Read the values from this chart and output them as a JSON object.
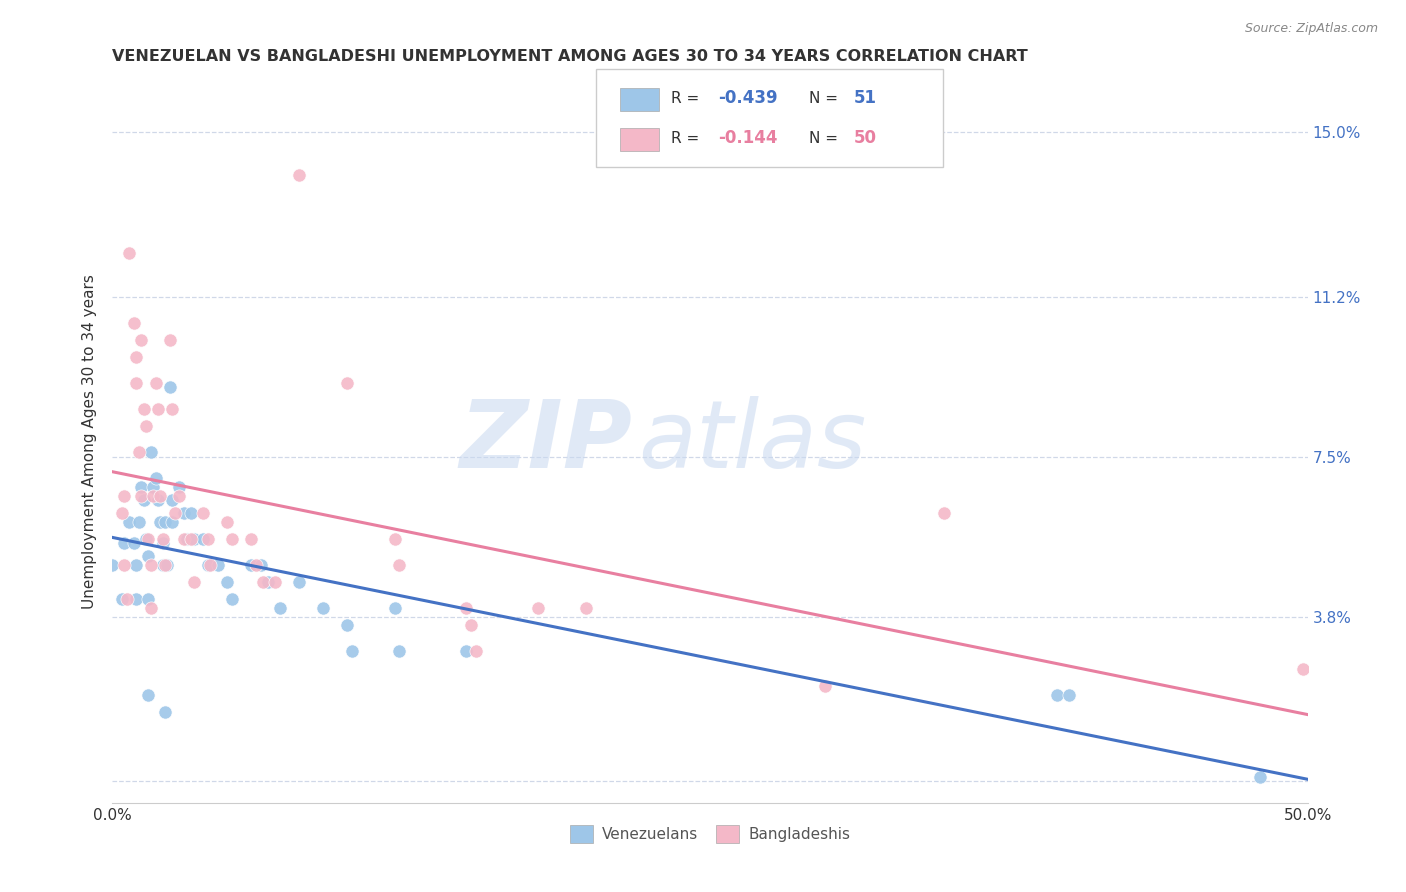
{
  "title": "VENEZUELAN VS BANGLADESHI UNEMPLOYMENT AMONG AGES 30 TO 34 YEARS CORRELATION CHART",
  "source": "Source: ZipAtlas.com",
  "ylabel": "Unemployment Among Ages 30 to 34 years",
  "xlim": [
    0.0,
    0.5
  ],
  "ylim": [
    -0.005,
    0.162
  ],
  "xticks": [
    0.0,
    0.1,
    0.2,
    0.3,
    0.4,
    0.5
  ],
  "xticklabels": [
    "0.0%",
    "",
    "",
    "",
    "",
    "50.0%"
  ],
  "ytick_positions": [
    0.0,
    0.038,
    0.075,
    0.112,
    0.15
  ],
  "yticklabels": [
    "",
    "3.8%",
    "7.5%",
    "11.2%",
    "15.0%"
  ],
  "legend_R1_val": "-0.439",
  "legend_N1_val": "51",
  "legend_R2_val": "-0.144",
  "legend_N2_val": "50",
  "venezuelan_color": "#9ec6e8",
  "bangladeshi_color": "#f4b8c8",
  "venezuelan_line_color": "#4472c4",
  "bangladeshi_line_color": "#e87fa0",
  "watermark_zip": "ZIP",
  "watermark_atlas": "atlas",
  "venezuelan_points": [
    [
      0.0,
      0.05
    ],
    [
      0.004,
      0.042
    ],
    [
      0.005,
      0.055
    ],
    [
      0.007,
      0.06
    ],
    [
      0.009,
      0.055
    ],
    [
      0.01,
      0.05
    ],
    [
      0.01,
      0.042
    ],
    [
      0.011,
      0.06
    ],
    [
      0.012,
      0.068
    ],
    [
      0.013,
      0.065
    ],
    [
      0.014,
      0.056
    ],
    [
      0.015,
      0.052
    ],
    [
      0.015,
      0.042
    ],
    [
      0.016,
      0.076
    ],
    [
      0.017,
      0.068
    ],
    [
      0.018,
      0.07
    ],
    [
      0.019,
      0.065
    ],
    [
      0.02,
      0.06
    ],
    [
      0.021,
      0.055
    ],
    [
      0.021,
      0.05
    ],
    [
      0.022,
      0.06
    ],
    [
      0.023,
      0.05
    ],
    [
      0.024,
      0.091
    ],
    [
      0.025,
      0.065
    ],
    [
      0.025,
      0.06
    ],
    [
      0.028,
      0.068
    ],
    [
      0.03,
      0.062
    ],
    [
      0.031,
      0.056
    ],
    [
      0.033,
      0.062
    ],
    [
      0.034,
      0.056
    ],
    [
      0.038,
      0.056
    ],
    [
      0.04,
      0.05
    ],
    [
      0.044,
      0.05
    ],
    [
      0.048,
      0.046
    ],
    [
      0.05,
      0.042
    ],
    [
      0.058,
      0.05
    ],
    [
      0.062,
      0.05
    ],
    [
      0.065,
      0.046
    ],
    [
      0.07,
      0.04
    ],
    [
      0.078,
      0.046
    ],
    [
      0.088,
      0.04
    ],
    [
      0.098,
      0.036
    ],
    [
      0.1,
      0.03
    ],
    [
      0.118,
      0.04
    ],
    [
      0.12,
      0.03
    ],
    [
      0.148,
      0.03
    ],
    [
      0.015,
      0.02
    ],
    [
      0.022,
      0.016
    ],
    [
      0.395,
      0.02
    ],
    [
      0.4,
      0.02
    ],
    [
      0.48,
      0.001
    ]
  ],
  "bangladeshi_points": [
    [
      0.004,
      0.062
    ],
    [
      0.005,
      0.05
    ],
    [
      0.006,
      0.042
    ],
    [
      0.007,
      0.122
    ],
    [
      0.009,
      0.106
    ],
    [
      0.01,
      0.098
    ],
    [
      0.01,
      0.092
    ],
    [
      0.011,
      0.076
    ],
    [
      0.012,
      0.066
    ],
    [
      0.012,
      0.102
    ],
    [
      0.013,
      0.086
    ],
    [
      0.014,
      0.082
    ],
    [
      0.015,
      0.056
    ],
    [
      0.016,
      0.05
    ],
    [
      0.016,
      0.04
    ],
    [
      0.017,
      0.066
    ],
    [
      0.018,
      0.092
    ],
    [
      0.019,
      0.086
    ],
    [
      0.02,
      0.066
    ],
    [
      0.021,
      0.056
    ],
    [
      0.022,
      0.05
    ],
    [
      0.024,
      0.102
    ],
    [
      0.025,
      0.086
    ],
    [
      0.026,
      0.062
    ],
    [
      0.028,
      0.066
    ],
    [
      0.03,
      0.056
    ],
    [
      0.033,
      0.056
    ],
    [
      0.034,
      0.046
    ],
    [
      0.038,
      0.062
    ],
    [
      0.04,
      0.056
    ],
    [
      0.041,
      0.05
    ],
    [
      0.048,
      0.06
    ],
    [
      0.05,
      0.056
    ],
    [
      0.058,
      0.056
    ],
    [
      0.06,
      0.05
    ],
    [
      0.063,
      0.046
    ],
    [
      0.068,
      0.046
    ],
    [
      0.078,
      0.14
    ],
    [
      0.098,
      0.092
    ],
    [
      0.118,
      0.056
    ],
    [
      0.12,
      0.05
    ],
    [
      0.148,
      0.04
    ],
    [
      0.15,
      0.036
    ],
    [
      0.152,
      0.03
    ],
    [
      0.178,
      0.04
    ],
    [
      0.198,
      0.04
    ],
    [
      0.348,
      0.062
    ],
    [
      0.005,
      0.066
    ],
    [
      0.298,
      0.022
    ],
    [
      0.498,
      0.026
    ]
  ],
  "background_color": "#ffffff",
  "grid_color": "#d0d8e8",
  "title_color": "#333333",
  "ylabel_color": "#333333",
  "right_ytick_color": "#4472c4",
  "figsize": [
    14.06,
    8.92
  ],
  "dpi": 100
}
